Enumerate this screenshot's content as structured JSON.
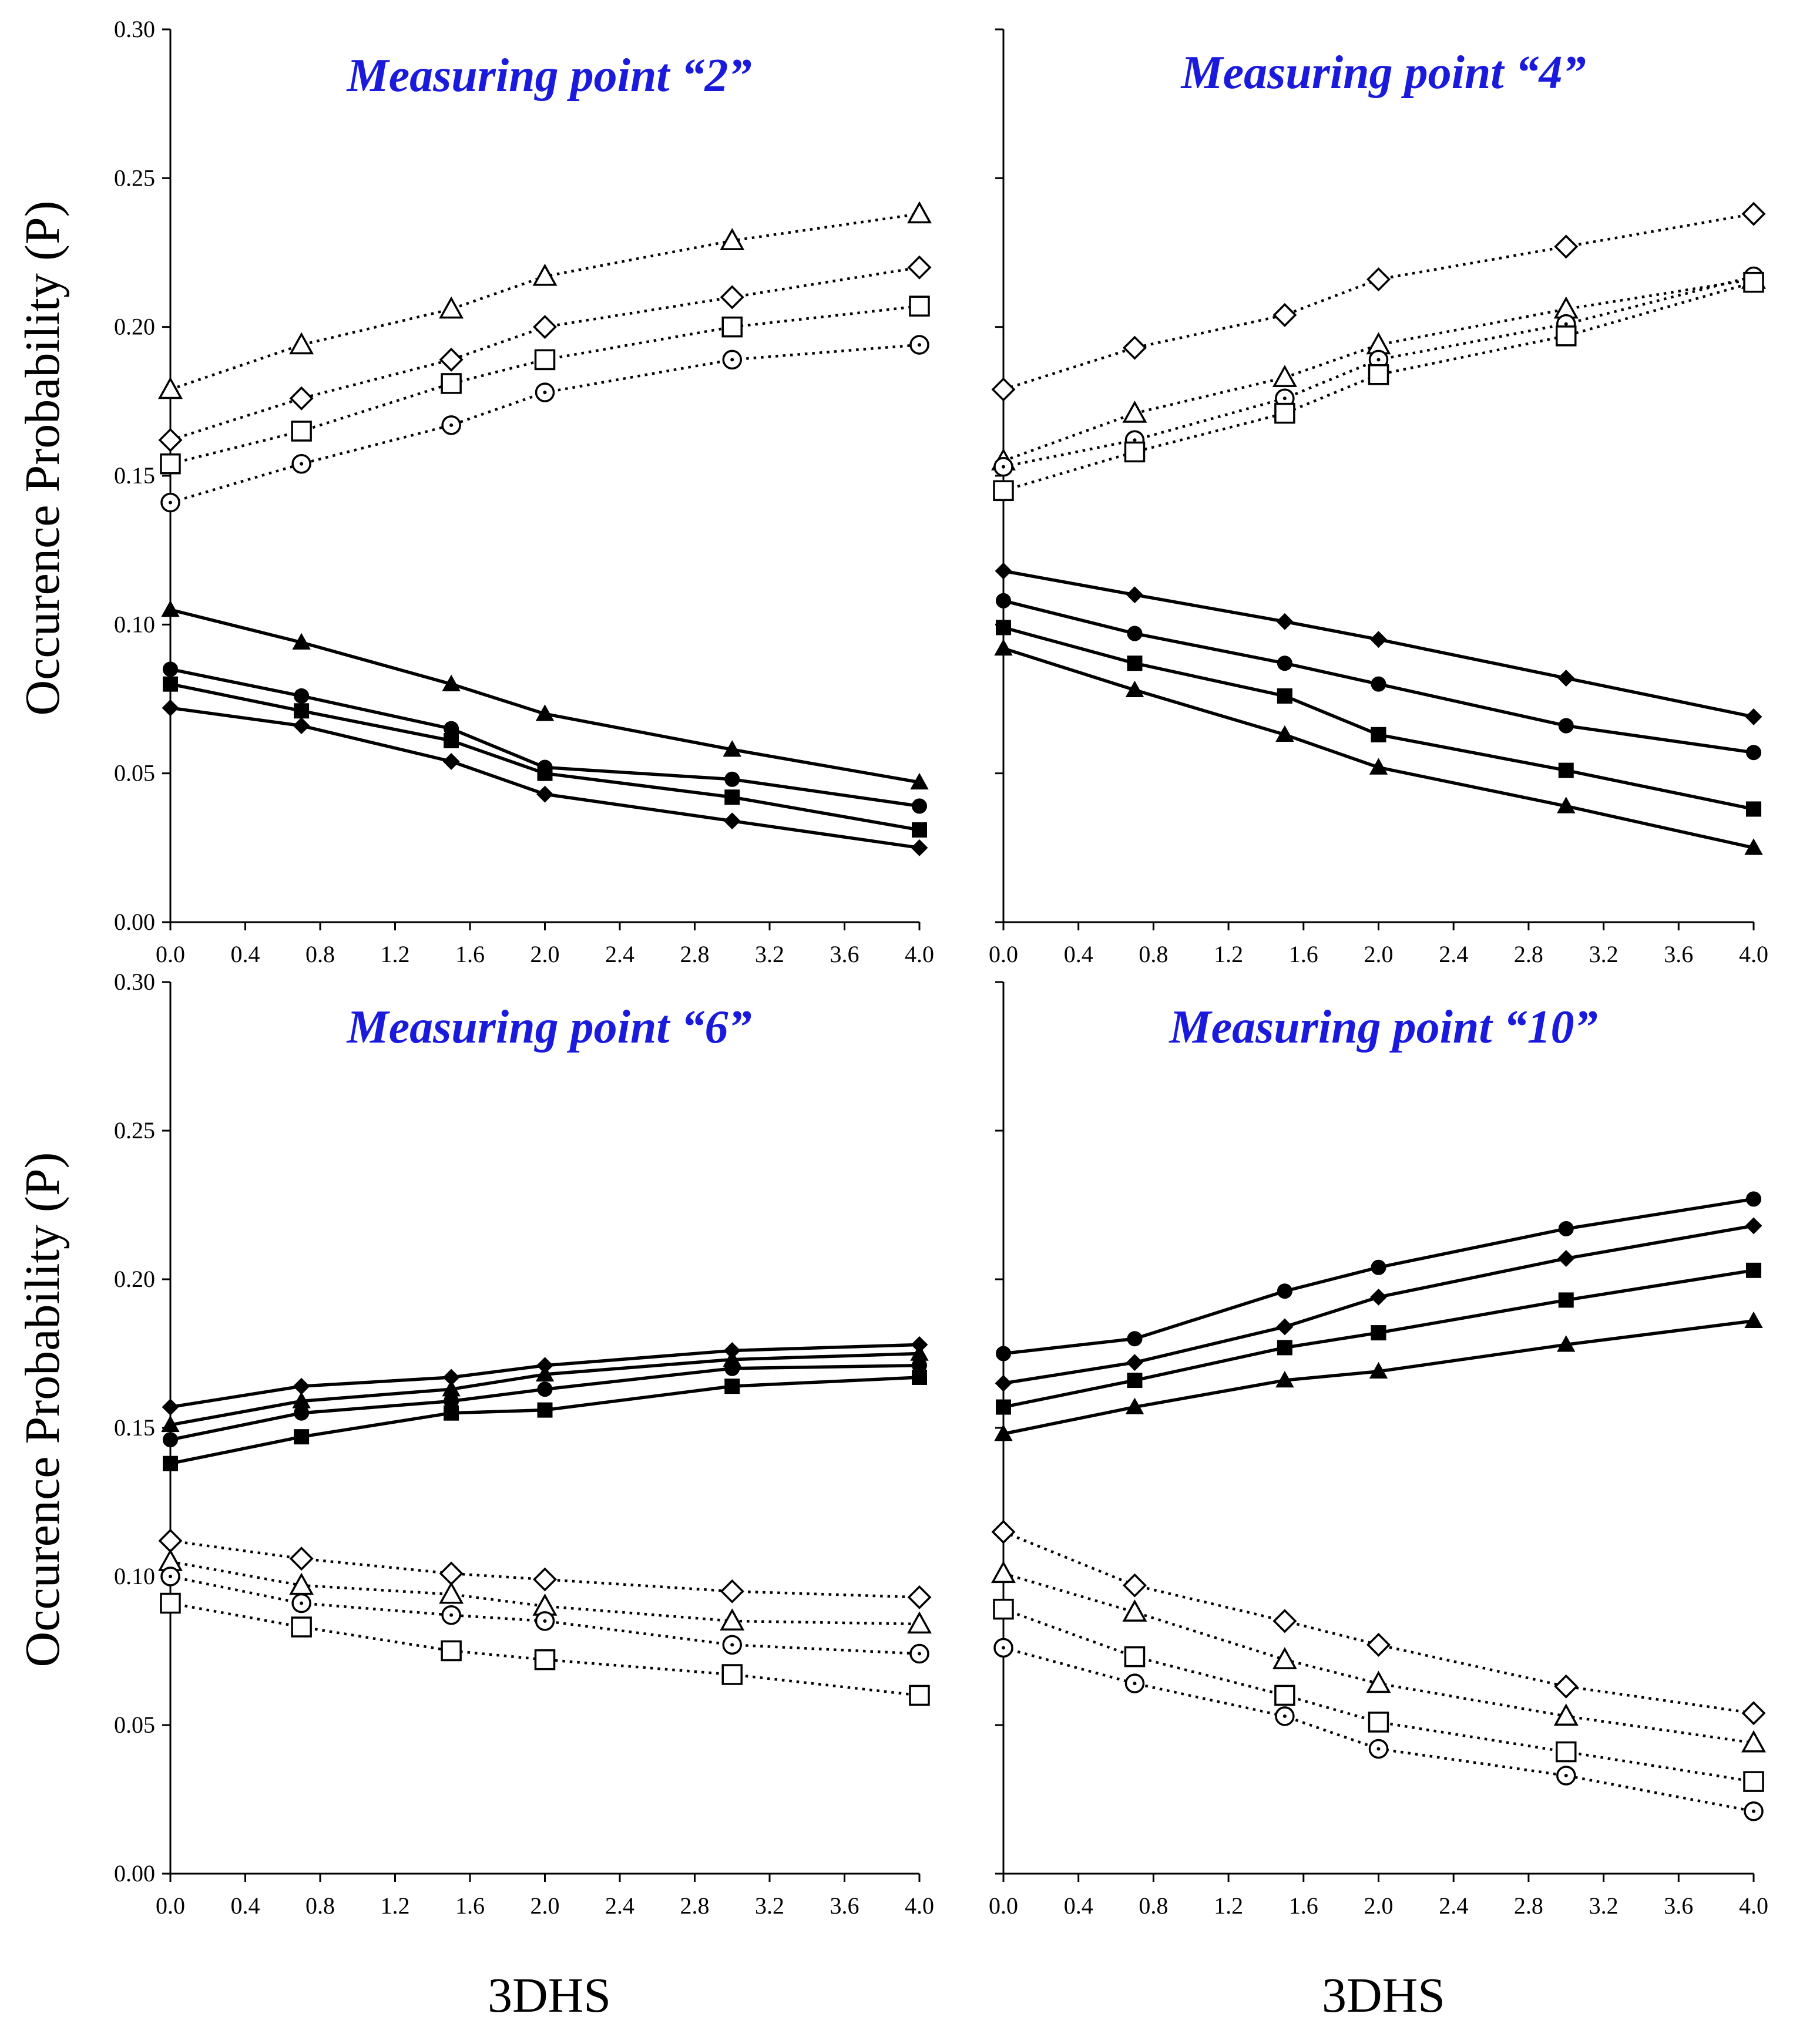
{
  "figure": {
    "ylabel": "Occurence Probability (P)",
    "xlabel": "3DHS",
    "title_color": "#1a1adc",
    "x_ticks": [
      "0.0",
      "0.4",
      "0.8",
      "1.2",
      "1.6",
      "2.0",
      "2.4",
      "2.8",
      "3.2",
      "3.6",
      "4.0"
    ],
    "y_ticks": [
      "0.00",
      "0.05",
      "0.10",
      "0.15",
      "0.20",
      "0.25",
      "0.30"
    ]
  },
  "chart_data": [
    {
      "type": "line",
      "title": "Measuring point “2”",
      "xlabel": "3DHS",
      "ylabel": "Occurence Probability (P)",
      "xlim": [
        0,
        4
      ],
      "ylim": [
        0,
        0.3
      ],
      "x": [
        0,
        0.7,
        1.5,
        2.0,
        3.0,
        4.0
      ],
      "series": [
        {
          "name": "open-triangle",
          "marker": "triangle",
          "filled": false,
          "style": "dotted",
          "values": [
            0.179,
            0.194,
            0.206,
            0.217,
            0.229,
            0.238
          ]
        },
        {
          "name": "open-diamond",
          "marker": "diamond",
          "filled": false,
          "style": "dotted",
          "values": [
            0.162,
            0.176,
            0.189,
            0.2,
            0.21,
            0.22
          ]
        },
        {
          "name": "open-square",
          "marker": "square",
          "filled": false,
          "style": "dotted",
          "values": [
            0.154,
            0.165,
            0.181,
            0.189,
            0.2,
            0.207
          ]
        },
        {
          "name": "open-circle",
          "marker": "circle",
          "filled": false,
          "style": "dotted",
          "values": [
            0.141,
            0.154,
            0.167,
            0.178,
            0.189,
            0.194
          ]
        },
        {
          "name": "filled-triangle",
          "marker": "triangle",
          "filled": true,
          "style": "solid",
          "values": [
            0.105,
            0.094,
            0.08,
            0.07,
            0.058,
            0.047
          ]
        },
        {
          "name": "filled-circle",
          "marker": "circle",
          "filled": true,
          "style": "solid",
          "values": [
            0.085,
            0.076,
            0.065,
            0.052,
            0.048,
            0.039
          ]
        },
        {
          "name": "filled-square",
          "marker": "square",
          "filled": true,
          "style": "solid",
          "values": [
            0.08,
            0.071,
            0.061,
            0.05,
            0.042,
            0.031
          ]
        },
        {
          "name": "filled-diamond",
          "marker": "diamond",
          "filled": true,
          "style": "solid",
          "values": [
            0.072,
            0.066,
            0.054,
            0.043,
            0.034,
            0.025
          ]
        }
      ]
    },
    {
      "type": "line",
      "title": "Measuring point “4”",
      "xlabel": "3DHS",
      "ylabel": "",
      "xlim": [
        0,
        4
      ],
      "ylim": [
        0,
        0.3
      ],
      "x": [
        0,
        0.7,
        1.5,
        2.0,
        3.0,
        4.0
      ],
      "series": [
        {
          "name": "open-diamond",
          "marker": "diamond",
          "filled": false,
          "style": "dotted",
          "values": [
            0.179,
            0.193,
            0.204,
            0.216,
            0.227,
            0.238
          ]
        },
        {
          "name": "open-triangle",
          "marker": "triangle",
          "filled": false,
          "style": "dotted",
          "values": [
            0.155,
            0.171,
            0.183,
            0.194,
            0.206,
            0.216
          ]
        },
        {
          "name": "open-circle",
          "marker": "circle",
          "filled": false,
          "style": "dotted",
          "values": [
            0.153,
            0.162,
            0.176,
            0.189,
            0.201,
            0.217
          ]
        },
        {
          "name": "open-square",
          "marker": "square",
          "filled": false,
          "style": "dotted",
          "values": [
            0.145,
            0.158,
            0.171,
            0.184,
            0.197,
            0.215
          ]
        },
        {
          "name": "filled-diamond",
          "marker": "diamond",
          "filled": true,
          "style": "solid",
          "values": [
            0.118,
            0.11,
            0.101,
            0.095,
            0.082,
            0.069
          ]
        },
        {
          "name": "filled-circle",
          "marker": "circle",
          "filled": true,
          "style": "solid",
          "values": [
            0.108,
            0.097,
            0.087,
            0.08,
            0.066,
            0.057
          ]
        },
        {
          "name": "filled-square",
          "marker": "square",
          "filled": true,
          "style": "solid",
          "values": [
            0.099,
            0.087,
            0.076,
            0.063,
            0.051,
            0.038
          ]
        },
        {
          "name": "filled-triangle",
          "marker": "triangle",
          "filled": true,
          "style": "solid",
          "values": [
            0.092,
            0.078,
            0.063,
            0.052,
            0.039,
            0.025
          ]
        }
      ]
    },
    {
      "type": "line",
      "title": "Measuring point “6”",
      "xlabel": "3DHS",
      "ylabel": "Occurence Probability (P)",
      "xlim": [
        0,
        4
      ],
      "ylim": [
        0,
        0.3
      ],
      "x": [
        0,
        0.7,
        1.5,
        2.0,
        3.0,
        4.0
      ],
      "series": [
        {
          "name": "filled-diamond",
          "marker": "diamond",
          "filled": true,
          "style": "solid",
          "values": [
            0.157,
            0.164,
            0.167,
            0.171,
            0.176,
            0.178
          ]
        },
        {
          "name": "filled-triangle",
          "marker": "triangle",
          "filled": true,
          "style": "solid",
          "values": [
            0.151,
            0.159,
            0.163,
            0.168,
            0.173,
            0.175
          ]
        },
        {
          "name": "filled-circle",
          "marker": "circle",
          "filled": true,
          "style": "solid",
          "values": [
            0.146,
            0.155,
            0.159,
            0.163,
            0.17,
            0.171
          ]
        },
        {
          "name": "filled-square",
          "marker": "square",
          "filled": true,
          "style": "solid",
          "values": [
            0.138,
            0.147,
            0.155,
            0.156,
            0.164,
            0.167
          ]
        },
        {
          "name": "open-diamond",
          "marker": "diamond",
          "filled": false,
          "style": "dotted",
          "values": [
            0.112,
            0.106,
            0.101,
            0.099,
            0.095,
            0.093
          ]
        },
        {
          "name": "open-triangle",
          "marker": "triangle",
          "filled": false,
          "style": "dotted",
          "values": [
            0.105,
            0.097,
            0.094,
            0.09,
            0.085,
            0.084
          ]
        },
        {
          "name": "open-circle",
          "marker": "circle",
          "filled": false,
          "style": "dotted",
          "values": [
            0.1,
            0.091,
            0.087,
            0.085,
            0.077,
            0.074
          ]
        },
        {
          "name": "open-square",
          "marker": "square",
          "filled": false,
          "style": "dotted",
          "values": [
            0.091,
            0.083,
            0.075,
            0.072,
            0.067,
            0.06
          ]
        }
      ]
    },
    {
      "type": "line",
      "title": "Measuring point “10”",
      "xlabel": "3DHS",
      "ylabel": "",
      "xlim": [
        0,
        4
      ],
      "ylim": [
        0,
        0.3
      ],
      "x": [
        0,
        0.7,
        1.5,
        2.0,
        3.0,
        4.0
      ],
      "series": [
        {
          "name": "filled-circle",
          "marker": "circle",
          "filled": true,
          "style": "solid",
          "values": [
            0.175,
            0.18,
            0.196,
            0.204,
            0.217,
            0.227
          ]
        },
        {
          "name": "filled-diamond",
          "marker": "diamond",
          "filled": true,
          "style": "solid",
          "values": [
            0.165,
            0.172,
            0.184,
            0.194,
            0.207,
            0.218
          ]
        },
        {
          "name": "filled-square",
          "marker": "square",
          "filled": true,
          "style": "solid",
          "values": [
            0.157,
            0.166,
            0.177,
            0.182,
            0.193,
            0.203
          ]
        },
        {
          "name": "filled-triangle",
          "marker": "triangle",
          "filled": true,
          "style": "solid",
          "values": [
            0.148,
            0.157,
            0.166,
            0.169,
            0.178,
            0.186
          ]
        },
        {
          "name": "open-diamond",
          "marker": "diamond",
          "filled": false,
          "style": "dotted",
          "values": [
            0.115,
            0.097,
            0.085,
            0.077,
            0.063,
            0.054
          ]
        },
        {
          "name": "open-triangle",
          "marker": "triangle",
          "filled": false,
          "style": "dotted",
          "values": [
            0.101,
            0.088,
            0.072,
            0.064,
            0.053,
            0.044
          ]
        },
        {
          "name": "open-square",
          "marker": "square",
          "filled": false,
          "style": "dotted",
          "values": [
            0.089,
            0.073,
            0.06,
            0.051,
            0.041,
            0.031
          ]
        },
        {
          "name": "open-circle",
          "marker": "circle",
          "filled": false,
          "style": "dotted",
          "values": [
            0.076,
            0.064,
            0.053,
            0.042,
            0.033,
            0.021
          ]
        }
      ]
    }
  ]
}
